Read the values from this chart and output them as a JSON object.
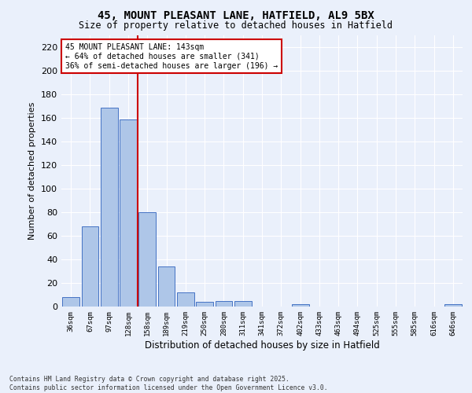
{
  "title1": "45, MOUNT PLEASANT LANE, HATFIELD, AL9 5BX",
  "title2": "Size of property relative to detached houses in Hatfield",
  "xlabel": "Distribution of detached houses by size in Hatfield",
  "ylabel": "Number of detached properties",
  "bar_labels": [
    "36sqm",
    "67sqm",
    "97sqm",
    "128sqm",
    "158sqm",
    "189sqm",
    "219sqm",
    "250sqm",
    "280sqm",
    "311sqm",
    "341sqm",
    "372sqm",
    "402sqm",
    "433sqm",
    "463sqm",
    "494sqm",
    "525sqm",
    "555sqm",
    "585sqm",
    "616sqm",
    "646sqm"
  ],
  "bar_values": [
    8,
    68,
    169,
    159,
    80,
    34,
    12,
    4,
    5,
    5,
    0,
    0,
    2,
    0,
    0,
    0,
    0,
    0,
    0,
    0,
    2
  ],
  "bar_color": "#aec6e8",
  "bar_edge_color": "#4472c4",
  "bg_color": "#eaf0fb",
  "grid_color": "#ffffff",
  "vline_x": 3.5,
  "vline_color": "#cc0000",
  "annotation_text": "45 MOUNT PLEASANT LANE: 143sqm\n← 64% of detached houses are smaller (341)\n36% of semi-detached houses are larger (196) →",
  "annotation_box_color": "#ffffff",
  "annotation_box_edge": "#cc0000",
  "ylim": [
    0,
    230
  ],
  "yticks": [
    0,
    20,
    40,
    60,
    80,
    100,
    120,
    140,
    160,
    180,
    200,
    220
  ],
  "footer1": "Contains HM Land Registry data © Crown copyright and database right 2025.",
  "footer2": "Contains public sector information licensed under the Open Government Licence v3.0."
}
